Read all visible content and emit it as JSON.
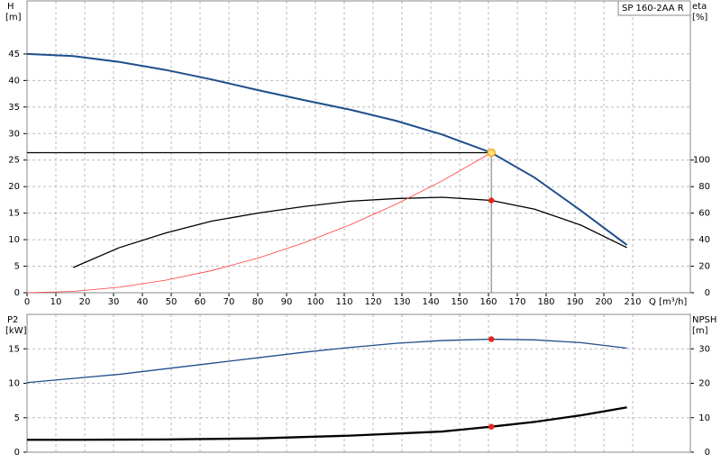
{
  "chart_data": [
    {
      "type": "line",
      "annotation": "SP 160-2AA R",
      "ylabel": "H",
      "yunit": "[m]",
      "y2label": "eta",
      "y2unit": "[%]",
      "xlabel": "Q [m³/h]",
      "xlim": [
        0,
        230
      ],
      "xticks": [
        0,
        10,
        20,
        30,
        40,
        50,
        60,
        70,
        80,
        90,
        100,
        110,
        120,
        130,
        140,
        150,
        160,
        170,
        180,
        190,
        200,
        210
      ],
      "ylim": [
        0,
        55
      ],
      "yticks": [
        0,
        5,
        10,
        15,
        20,
        25,
        30,
        35,
        40,
        45
      ],
      "y2lim": [
        0,
        220
      ],
      "y2ticks": [
        0,
        20,
        40,
        60,
        80,
        100
      ],
      "grid": true,
      "series": [
        {
          "color": "#1f4e8c",
          "width": 2,
          "x": [
            0,
            16,
            32,
            48,
            64,
            80,
            96,
            112,
            128,
            144,
            161,
            176,
            192,
            208
          ],
          "values": [
            45,
            44.6,
            43.5,
            42,
            40.2,
            38.2,
            36.3,
            34.5,
            32.4,
            29.8,
            26.4,
            21.7,
            15.5,
            9
          ]
        },
        {
          "color": "#000000",
          "width": 1.3,
          "axis": "y2",
          "x": [
            16,
            32,
            48,
            64,
            80,
            96,
            112,
            128,
            144,
            161,
            176,
            192,
            208
          ],
          "values": [
            19,
            34,
            45,
            54,
            60,
            65,
            69,
            71,
            72,
            69.6,
            63,
            51,
            34
          ]
        },
        {
          "color": "#ff3b3b",
          "width": 0.8,
          "x": [
            0,
            16,
            32,
            48,
            64,
            80,
            96,
            112,
            128,
            144,
            161
          ],
          "values": [
            0,
            0.26,
            1.04,
            2.35,
            4.17,
            6.52,
            9.39,
            12.8,
            16.7,
            21.1,
            26.4
          ]
        }
      ],
      "points": [
        {
          "x": 161,
          "y": 69.6,
          "axis": "y2",
          "color": "#e8221b"
        },
        {
          "x": 161,
          "y": 26.4,
          "color": "#f5a623",
          "operating": true
        }
      ]
    },
    {
      "type": "line",
      "ylabel": "P2",
      "yunit": "[kW]",
      "y2label": "NPSH",
      "y2unit": "[m]",
      "xlim": [
        0,
        230
      ],
      "ylim": [
        0,
        20
      ],
      "yticks": [
        0,
        5,
        10,
        15
      ],
      "y2lim": [
        0,
        40
      ],
      "y2ticks": [
        0,
        10,
        20,
        30
      ],
      "grid": true,
      "series": [
        {
          "color": "#1f4e8c",
          "width": 1.3,
          "x": [
            0,
            16,
            32,
            48,
            64,
            80,
            96,
            112,
            128,
            144,
            161,
            176,
            192,
            208
          ],
          "values": [
            10.1,
            10.7,
            11.3,
            12.1,
            12.9,
            13.7,
            14.5,
            15.2,
            15.8,
            16.2,
            16.4,
            16.3,
            15.9,
            15.1
          ]
        },
        {
          "color": "#000000",
          "width": 2.3,
          "axis": "y2",
          "x": [
            0,
            16,
            48,
            80,
            112,
            144,
            161,
            176,
            192,
            208
          ],
          "values": [
            3.6,
            3.6,
            3.7,
            4.0,
            4.8,
            6.0,
            7.4,
            8.8,
            10.7,
            13.0
          ]
        }
      ],
      "points": [
        {
          "x": 161,
          "y": 16.4,
          "color": "#e8221b"
        },
        {
          "x": 161,
          "y": 7.4,
          "axis": "y2",
          "color": "#e8221b"
        }
      ]
    }
  ]
}
